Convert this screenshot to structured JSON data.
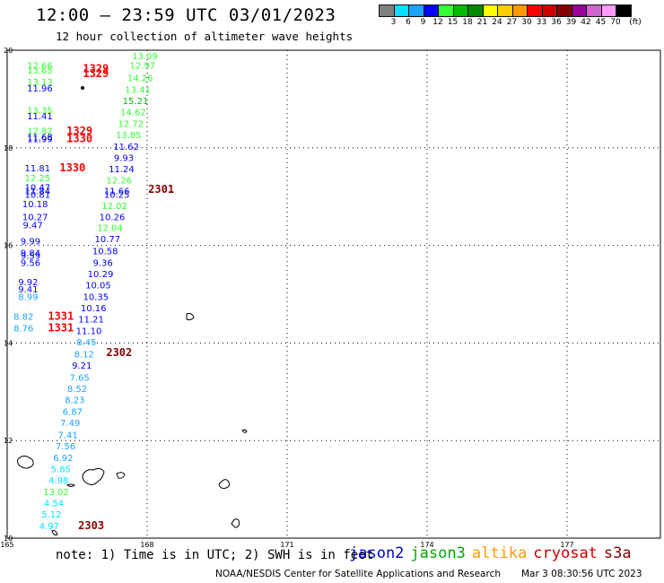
{
  "header": {
    "title": "12:00 — 23:59 UTC 03/01/2023",
    "subtitle": "12 hour collection of altimeter wave heights"
  },
  "color_scale": {
    "unit": "(ft)",
    "labels": [
      "3",
      "6",
      "9",
      "12",
      "15",
      "18",
      "21",
      "24",
      "27",
      "30",
      "33",
      "36",
      "39",
      "42",
      "45",
      "70"
    ],
    "colors": [
      "#7f7f7f",
      "#00e5ff",
      "#1aa3ff",
      "#0000ff",
      "#33ff33",
      "#00bb00",
      "#008800",
      "#ffff00",
      "#ffcc00",
      "#ff9900",
      "#ff0000",
      "#cc0000",
      "#880000",
      "#990099",
      "#cc66cc",
      "#ff99ff",
      "#000000"
    ]
  },
  "map": {
    "lon_labels": [
      "165",
      "168",
      "171",
      "174",
      "177"
    ],
    "lat_labels": [
      "20",
      "18",
      "16",
      "14",
      "12",
      "10"
    ],
    "grid": true
  },
  "chart_data": {
    "type": "scatter",
    "title": "12:00 — 23:59 UTC 03/01/2023",
    "subtitle": "12 hour collection of altimeter wave heights",
    "xlabel": "",
    "ylabel": "",
    "xlim": [
      165,
      179
    ],
    "ylim": [
      10,
      20
    ],
    "unit": "ft",
    "points": [
      {
        "lon": 165.7,
        "lat": 19.62,
        "v": "12.66",
        "c": "#33ff33"
      },
      {
        "lon": 165.7,
        "lat": 19.52,
        "v": "13.65",
        "c": "#33ff33"
      },
      {
        "lon": 165.7,
        "lat": 19.28,
        "v": "13.13",
        "c": "#33ff33"
      },
      {
        "lon": 165.7,
        "lat": 19.15,
        "v": "11.96",
        "c": "#0000ff"
      },
      {
        "lon": 165.7,
        "lat": 18.7,
        "v": "13.35",
        "c": "#33ff33"
      },
      {
        "lon": 165.7,
        "lat": 18.58,
        "v": "11.41",
        "c": "#0000ff"
      },
      {
        "lon": 165.7,
        "lat": 18.28,
        "v": "12.82",
        "c": "#33ff33"
      },
      {
        "lon": 165.7,
        "lat": 18.15,
        "v": "11.68",
        "c": "#0000ff"
      },
      {
        "lon": 165.7,
        "lat": 18.12,
        "v": "11.99",
        "c": "#0000ff"
      },
      {
        "lon": 165.65,
        "lat": 17.52,
        "v": "11.81",
        "c": "#0000ff"
      },
      {
        "lon": 165.65,
        "lat": 17.32,
        "v": "12.25",
        "c": "#33ff33"
      },
      {
        "lon": 165.65,
        "lat": 17.12,
        "v": "10.47",
        "c": "#0000ff"
      },
      {
        "lon": 165.65,
        "lat": 17.05,
        "v": "11.84",
        "c": "#0000ff"
      },
      {
        "lon": 165.65,
        "lat": 16.98,
        "v": "10.81",
        "c": "#0000ff"
      },
      {
        "lon": 165.6,
        "lat": 16.78,
        "v": "10.18",
        "c": "#0000ff"
      },
      {
        "lon": 165.6,
        "lat": 16.52,
        "v": "10.27",
        "c": "#0000ff"
      },
      {
        "lon": 165.55,
        "lat": 16.35,
        "v": "9.47",
        "c": "#0000ff"
      },
      {
        "lon": 165.5,
        "lat": 16.02,
        "v": "9.99",
        "c": "#0000ff"
      },
      {
        "lon": 165.5,
        "lat": 15.78,
        "v": "9.84",
        "c": "#0000ff"
      },
      {
        "lon": 165.5,
        "lat": 15.73,
        "v": "9.59",
        "c": "#0000ff"
      },
      {
        "lon": 165.5,
        "lat": 15.58,
        "v": "9.56",
        "c": "#0000ff"
      },
      {
        "lon": 165.45,
        "lat": 15.18,
        "v": "9.92",
        "c": "#0000ff"
      },
      {
        "lon": 165.45,
        "lat": 15.04,
        "v": "9.41",
        "c": "#0000ff"
      },
      {
        "lon": 165.45,
        "lat": 14.88,
        "v": "8.99",
        "c": "#1aa3ff"
      },
      {
        "lon": 165.35,
        "lat": 14.48,
        "v": "8.82",
        "c": "#1aa3ff"
      },
      {
        "lon": 165.35,
        "lat": 14.24,
        "v": "8.76",
        "c": "#1aa3ff"
      },
      {
        "lon": 167.95,
        "lat": 19.82,
        "v": "13.09",
        "c": "#33ff33"
      },
      {
        "lon": 167.9,
        "lat": 19.62,
        "v": "12.97",
        "c": "#33ff33"
      },
      {
        "lon": 167.85,
        "lat": 19.37,
        "v": "14.26",
        "c": "#33ff33"
      },
      {
        "lon": 167.8,
        "lat": 19.13,
        "v": "13.41",
        "c": "#33ff33"
      },
      {
        "lon": 167.75,
        "lat": 18.9,
        "v": "15.21",
        "c": "#00bb00"
      },
      {
        "lon": 167.7,
        "lat": 18.67,
        "v": "14.62",
        "c": "#33ff33"
      },
      {
        "lon": 167.65,
        "lat": 18.43,
        "v": "12.72",
        "c": "#33ff33"
      },
      {
        "lon": 167.6,
        "lat": 18.2,
        "v": "13.85",
        "c": "#33ff33"
      },
      {
        "lon": 167.55,
        "lat": 17.96,
        "v": "11.62",
        "c": "#0000ff"
      },
      {
        "lon": 167.5,
        "lat": 17.73,
        "v": "9.93",
        "c": "#0000ff"
      },
      {
        "lon": 167.45,
        "lat": 17.5,
        "v": "11.24",
        "c": "#0000ff"
      },
      {
        "lon": 167.4,
        "lat": 17.27,
        "v": "12.26",
        "c": "#33ff33"
      },
      {
        "lon": 167.35,
        "lat": 17.05,
        "v": "11.66",
        "c": "#0000ff"
      },
      {
        "lon": 167.35,
        "lat": 16.98,
        "v": "10.25",
        "c": "#0000ff"
      },
      {
        "lon": 167.3,
        "lat": 16.75,
        "v": "12.02",
        "c": "#33ff33"
      },
      {
        "lon": 167.25,
        "lat": 16.52,
        "v": "10.26",
        "c": "#0000ff"
      },
      {
        "lon": 167.2,
        "lat": 16.3,
        "v": "12.04",
        "c": "#33ff33"
      },
      {
        "lon": 167.15,
        "lat": 16.07,
        "v": "10.77",
        "c": "#0000ff"
      },
      {
        "lon": 167.1,
        "lat": 15.82,
        "v": "10.58",
        "c": "#0000ff"
      },
      {
        "lon": 167.05,
        "lat": 15.58,
        "v": "9.36",
        "c": "#0000ff"
      },
      {
        "lon": 167.0,
        "lat": 15.35,
        "v": "10.29",
        "c": "#0000ff"
      },
      {
        "lon": 166.95,
        "lat": 15.12,
        "v": "10.05",
        "c": "#0000ff"
      },
      {
        "lon": 166.9,
        "lat": 14.88,
        "v": "10.35",
        "c": "#0000ff"
      },
      {
        "lon": 166.85,
        "lat": 14.65,
        "v": "10.16",
        "c": "#0000ff"
      },
      {
        "lon": 166.8,
        "lat": 14.42,
        "v": "11.21",
        "c": "#0000ff"
      },
      {
        "lon": 166.75,
        "lat": 14.18,
        "v": "11.10",
        "c": "#0000ff"
      },
      {
        "lon": 166.7,
        "lat": 13.95,
        "v": "8.45",
        "c": "#1aa3ff"
      },
      {
        "lon": 166.65,
        "lat": 13.7,
        "v": "8.12",
        "c": "#1aa3ff"
      },
      {
        "lon": 166.6,
        "lat": 13.47,
        "v": "9.21",
        "c": "#0000ff"
      },
      {
        "lon": 166.55,
        "lat": 13.23,
        "v": "7.65",
        "c": "#1aa3ff"
      },
      {
        "lon": 166.5,
        "lat": 13.0,
        "v": "8.52",
        "c": "#1aa3ff"
      },
      {
        "lon": 166.45,
        "lat": 12.77,
        "v": "8.23",
        "c": "#1aa3ff"
      },
      {
        "lon": 166.4,
        "lat": 12.53,
        "v": "6.87",
        "c": "#1aa3ff"
      },
      {
        "lon": 166.35,
        "lat": 12.3,
        "v": "7.49",
        "c": "#1aa3ff"
      },
      {
        "lon": 166.3,
        "lat": 12.05,
        "v": "7.41",
        "c": "#1aa3ff"
      },
      {
        "lon": 166.25,
        "lat": 11.82,
        "v": "7.56",
        "c": "#1aa3ff"
      },
      {
        "lon": 166.2,
        "lat": 11.58,
        "v": "6.92",
        "c": "#1aa3ff"
      },
      {
        "lon": 166.15,
        "lat": 11.35,
        "v": "5.85",
        "c": "#00e5ff"
      },
      {
        "lon": 166.1,
        "lat": 11.12,
        "v": "4.98",
        "c": "#00e5ff"
      },
      {
        "lon": 166.05,
        "lat": 10.88,
        "v": "13.02",
        "c": "#33ff33"
      },
      {
        "lon": 166.0,
        "lat": 10.65,
        "v": "4.54",
        "c": "#00e5ff"
      },
      {
        "lon": 165.95,
        "lat": 10.42,
        "v": "5.12",
        "c": "#00e5ff"
      },
      {
        "lon": 165.9,
        "lat": 10.18,
        "v": "4.97",
        "c": "#00e5ff"
      }
    ],
    "time_labels": [
      {
        "lon": 166.9,
        "lat": 19.55,
        "text": "1329",
        "c": "#ff0000"
      },
      {
        "lon": 166.9,
        "lat": 19.45,
        "text": "1329",
        "c": "#ff0000"
      },
      {
        "lon": 166.55,
        "lat": 18.27,
        "text": "1329",
        "c": "#ff0000"
      },
      {
        "lon": 166.55,
        "lat": 18.12,
        "text": "1330",
        "c": "#ff0000"
      },
      {
        "lon": 166.4,
        "lat": 17.52,
        "text": "1330",
        "c": "#ff0000"
      },
      {
        "lon": 168.3,
        "lat": 17.08,
        "text": "2301",
        "c": "#880000"
      },
      {
        "lon": 166.15,
        "lat": 14.48,
        "text": "1331",
        "c": "#ff0000"
      },
      {
        "lon": 166.15,
        "lat": 14.24,
        "text": "1331",
        "c": "#ff0000"
      },
      {
        "lon": 167.4,
        "lat": 13.73,
        "text": "2302",
        "c": "#880000"
      },
      {
        "lon": 166.8,
        "lat": 10.18,
        "text": "2303",
        "c": "#880000"
      }
    ]
  },
  "notes": {
    "note": "note: 1) Time is in UTC; 2) SWH is in feet"
  },
  "satellites": [
    {
      "name": "jason2",
      "color": "#0000cc"
    },
    {
      "name": "jason3",
      "color": "#00aa00"
    },
    {
      "name": "altika",
      "color": "#ff9900"
    },
    {
      "name": "cryosat",
      "color": "#cc0000"
    },
    {
      "name": "s3a",
      "color": "#880000"
    }
  ],
  "footer": {
    "credit": "NOAA/NESDIS Center for Satellite Applications and Research",
    "timestamp": "Mar  3 08:30:56 UTC 2023"
  }
}
